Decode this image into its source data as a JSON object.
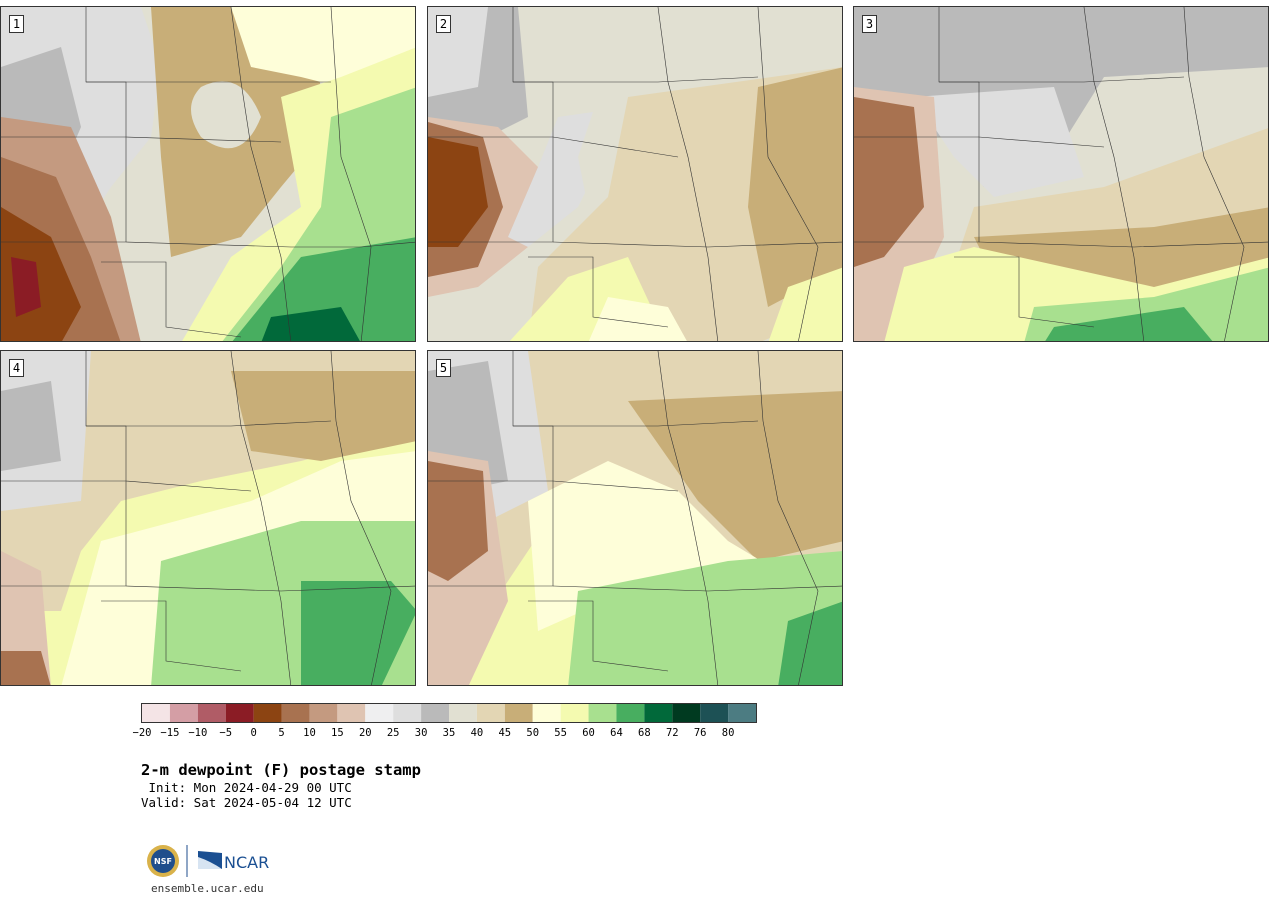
{
  "panels": [
    {
      "label": "1",
      "dominant": "north-dry-south-moist"
    },
    {
      "label": "2",
      "dominant": "dry"
    },
    {
      "label": "3",
      "dominant": "dry-with-southern-moisture"
    },
    {
      "label": "4",
      "dominant": "moist"
    },
    {
      "label": "5",
      "dominant": "moist"
    }
  ],
  "colorbar": {
    "ticks": [
      "−20",
      "−15",
      "−10",
      "−5",
      "0",
      "5",
      "10",
      "15",
      "20",
      "25",
      "30",
      "35",
      "40",
      "45",
      "50",
      "55",
      "60",
      "64",
      "68",
      "72",
      "76",
      "80"
    ],
    "colors": [
      "#f4e4e6",
      "#d49ea5",
      "#b05c66",
      "#8b1c25",
      "#8c4412",
      "#a87250",
      "#c49a80",
      "#dfc4b2",
      "#efeff0",
      "#dedede",
      "#bababa",
      "#e1e0d2",
      "#e3d6b4",
      "#c8ae78",
      "#fefed9",
      "#f4fab0",
      "#a8e08f",
      "#48ae60",
      "#01693a",
      "#003a20",
      "#1d5155",
      "#4c7c82"
    ]
  },
  "title": "2-m dewpoint (F) postage stamp",
  "init": " Init: Mon 2024-04-29 00 UTC",
  "valid": "Valid: Sat 2024-05-04 12 UTC",
  "logos": {
    "nsf": "NSF",
    "ncar": "NCAR"
  },
  "site": "ensemble.ucar.edu"
}
